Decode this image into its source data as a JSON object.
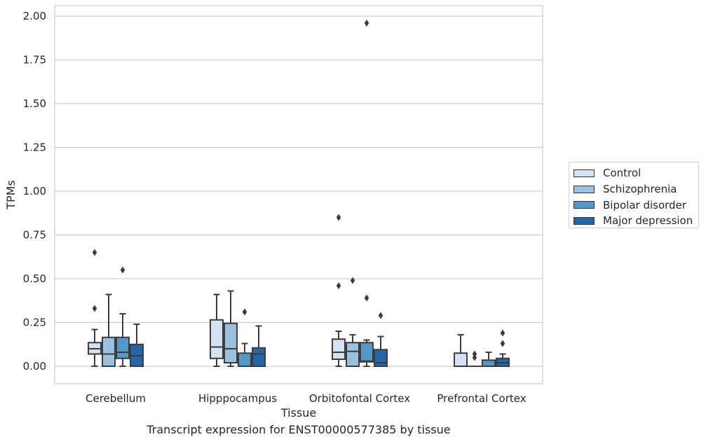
{
  "chart_data": {
    "type": "boxplot",
    "xlabel": "Tissue",
    "ylabel": "TPMs",
    "caption": "Transcript expression for ENST00000577385 by tissue",
    "ylim": [
      -0.1,
      2.06
    ],
    "yticks": [
      "0.00",
      "0.25",
      "0.50",
      "0.75",
      "1.00",
      "1.25",
      "1.50",
      "1.75",
      "2.00"
    ],
    "grid": "horizontal",
    "legend_position": "outside-right",
    "categories": [
      "Cerebellum",
      "Hipppocampus",
      "Orbitofontal Cortex",
      "Prefrontal Cortex"
    ],
    "series": [
      {
        "name": "Control",
        "color": "#d3e3f2",
        "boxes": [
          {
            "whislo": 0.0,
            "q1": 0.07,
            "med": 0.1,
            "q3": 0.135,
            "whishi": 0.21,
            "fliers": [
              0.33,
              0.65
            ]
          },
          {
            "whislo": 0.0,
            "q1": 0.045,
            "med": 0.11,
            "q3": 0.265,
            "whishi": 0.41,
            "fliers": []
          },
          {
            "whislo": 0.0,
            "q1": 0.04,
            "med": 0.08,
            "q3": 0.155,
            "whishi": 0.2,
            "fliers": [
              0.46,
              0.85
            ]
          },
          {
            "whislo": 0.0,
            "q1": 0.0,
            "med": 0.0,
            "q3": 0.075,
            "whishi": 0.18,
            "fliers": []
          }
        ]
      },
      {
        "name": "Schizophrenia",
        "color": "#9ac2de",
        "boxes": [
          {
            "whislo": 0.0,
            "q1": 0.0,
            "med": 0.07,
            "q3": 0.165,
            "whishi": 0.41,
            "fliers": []
          },
          {
            "whislo": 0.0,
            "q1": 0.02,
            "med": 0.1,
            "q3": 0.245,
            "whishi": 0.43,
            "fliers": []
          },
          {
            "whislo": 0.0,
            "q1": 0.0,
            "med": 0.085,
            "q3": 0.135,
            "whishi": 0.18,
            "fliers": [
              0.49
            ]
          },
          {
            "whislo": 0.0,
            "q1": 0.0,
            "med": 0.0,
            "q3": 0.0,
            "whishi": 0.0,
            "fliers": [
              0.05,
              0.07
            ]
          }
        ]
      },
      {
        "name": "Bipolar disorder",
        "color": "#5597c6",
        "boxes": [
          {
            "whislo": 0.0,
            "q1": 0.045,
            "med": 0.08,
            "q3": 0.165,
            "whishi": 0.3,
            "fliers": [
              0.55
            ]
          },
          {
            "whislo": 0.0,
            "q1": 0.0,
            "med": 0.0,
            "q3": 0.075,
            "whishi": 0.13,
            "fliers": [
              0.31
            ]
          },
          {
            "whislo": 0.0,
            "q1": 0.025,
            "med": 0.03,
            "q3": 0.135,
            "whishi": 0.15,
            "fliers": [
              0.39,
              1.96
            ]
          },
          {
            "whislo": 0.0,
            "q1": 0.0,
            "med": 0.0,
            "q3": 0.035,
            "whishi": 0.08,
            "fliers": []
          }
        ]
      },
      {
        "name": "Major depression",
        "color": "#2566a8",
        "boxes": [
          {
            "whislo": 0.0,
            "q1": 0.0,
            "med": 0.06,
            "q3": 0.125,
            "whishi": 0.24,
            "fliers": []
          },
          {
            "whislo": 0.0,
            "q1": 0.0,
            "med": 0.07,
            "q3": 0.105,
            "whishi": 0.23,
            "fliers": []
          },
          {
            "whislo": 0.0,
            "q1": 0.0,
            "med": 0.02,
            "q3": 0.095,
            "whishi": 0.17,
            "fliers": [
              0.29
            ]
          },
          {
            "whislo": 0.0,
            "q1": 0.0,
            "med": 0.02,
            "q3": 0.045,
            "whishi": 0.07,
            "fliers": [
              0.13,
              0.19
            ]
          }
        ]
      }
    ]
  }
}
